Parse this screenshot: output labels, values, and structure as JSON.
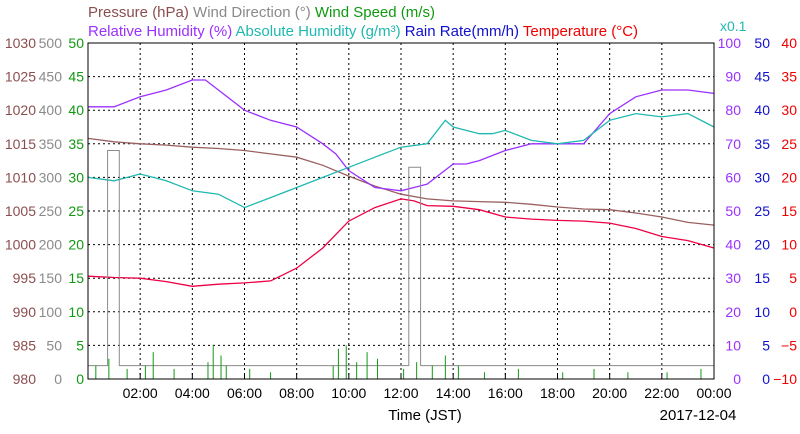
{
  "chart_data": {
    "type": "line",
    "x_axis": {
      "label": "Time (JST)",
      "date": "2017-12-04",
      "range_hours": [
        0,
        24
      ],
      "tick_labels": [
        "02:00",
        "04:00",
        "06:00",
        "08:00",
        "10:00",
        "12:00",
        "14:00",
        "16:00",
        "18:00",
        "20:00",
        "22:00",
        "00:00"
      ],
      "tick_hours": [
        2,
        4,
        6,
        8,
        10,
        12,
        14,
        16,
        18,
        20,
        22,
        24
      ]
    },
    "grid": true,
    "legend": {
      "row1": [
        {
          "id": "pressure",
          "text": "Pressure (hPa)"
        },
        {
          "id": "wind_dir",
          "text": "Wind Direction (°)"
        },
        {
          "id": "wind_speed",
          "text": "Wind Speed (m/s)"
        }
      ],
      "row2": [
        {
          "id": "rh",
          "text": "Relative Humidity (%)"
        },
        {
          "id": "abs_hum",
          "text": "Absolute Humidity (g/m³)"
        },
        {
          "id": "rain",
          "text": "Rain Rate(mm/h)"
        },
        {
          "id": "temp",
          "text": "Temperature (°C)"
        }
      ],
      "row2_suffix": "x0.1"
    },
    "axes": {
      "pressure": {
        "color": "#8b4e4e",
        "range": [
          980,
          1030
        ],
        "ticks": [
          "1030",
          "1025",
          "1020",
          "1015",
          "1010",
          "1005",
          "1000",
          "995",
          "990",
          "985",
          "980"
        ]
      },
      "wind_dir": {
        "color": "#8a8a8a",
        "range": [
          0,
          500
        ],
        "ticks": [
          "500",
          "450",
          "400",
          "350",
          "300",
          "250",
          "200",
          "150",
          "100",
          "50",
          "0"
        ]
      },
      "wind_speed": {
        "color": "#119911",
        "range": [
          0,
          50
        ],
        "ticks": [
          "50",
          "45",
          "40",
          "35",
          "30",
          "25",
          "20",
          "15",
          "10",
          "5",
          "0"
        ]
      },
      "rh": {
        "color": "#9b30ff",
        "range": [
          0,
          100
        ],
        "ticks": [
          "100",
          "90",
          "80",
          "70",
          "60",
          "50",
          "40",
          "30",
          "20",
          "10",
          "0"
        ]
      },
      "rain": {
        "color": "#1010cc",
        "range": [
          0,
          50
        ],
        "ticks": [
          "50",
          "45",
          "40",
          "35",
          "30",
          "25",
          "20",
          "15",
          "10",
          "5",
          "0"
        ]
      },
      "temp": {
        "color": "#ee0000",
        "range": [
          -10,
          40
        ],
        "ticks": [
          "40",
          "35",
          "30",
          "25",
          "20",
          "15",
          "10",
          "5",
          "0",
          "−5",
          "−10"
        ]
      }
    },
    "series": [
      {
        "name": "Pressure (hPa)",
        "axis": "pressure",
        "color": "#9a6060",
        "x": [
          0,
          1,
          2,
          3,
          4,
          5,
          6,
          7,
          8,
          9,
          10,
          11,
          12,
          13,
          14,
          15,
          16,
          17,
          18,
          19,
          20,
          21,
          22,
          23,
          24
        ],
        "y": [
          1015.8,
          1015.3,
          1015.0,
          1014.8,
          1014.5,
          1014.3,
          1014.0,
          1013.5,
          1013.0,
          1011.8,
          1010.2,
          1008.7,
          1007.5,
          1006.8,
          1006.5,
          1006.4,
          1006.3,
          1006.0,
          1005.6,
          1005.3,
          1005.2,
          1004.7,
          1004.1,
          1003.3,
          1002.9
        ]
      },
      {
        "name": "Relative Humidity (%)",
        "axis": "rh",
        "color": "#9b30ff",
        "x": [
          0,
          1,
          2,
          3,
          4,
          4.5,
          5,
          6,
          7,
          8,
          9,
          9.5,
          10,
          11,
          12,
          12.5,
          13,
          14,
          14.5,
          15,
          16,
          17,
          18,
          19,
          20,
          21,
          22,
          23,
          24
        ],
        "y": [
          81,
          81,
          84,
          86,
          89,
          89,
          86,
          80,
          77,
          75,
          70,
          67,
          62,
          57,
          56,
          57,
          58,
          64,
          64,
          65,
          68,
          70,
          70,
          70,
          79,
          84,
          86,
          86,
          85
        ]
      },
      {
        "name": "Absolute Humidity (g/m³)",
        "axis": "abs_hum",
        "color": "#20b8b0",
        "x": [
          0,
          1,
          2,
          3,
          4,
          5,
          6,
          7,
          8,
          9,
          10,
          11,
          12,
          13,
          13.7,
          14,
          15,
          15.5,
          16,
          17,
          18,
          19,
          20,
          21,
          22,
          23,
          24
        ],
        "y": [
          60,
          59,
          61,
          59,
          56,
          55,
          51,
          54,
          57,
          60,
          63,
          66,
          69,
          70,
          77,
          75,
          73,
          73,
          74,
          71,
          70,
          71,
          77,
          79,
          78,
          79,
          75
        ]
      },
      {
        "name": "Temperature (°C)",
        "axis": "temp",
        "color": "#ee0044",
        "x": [
          0,
          1,
          2,
          3,
          4,
          5,
          6,
          7,
          8,
          9,
          10,
          11,
          12,
          12.5,
          13,
          14,
          15,
          16,
          17,
          18,
          19,
          20,
          21,
          22,
          23,
          24
        ],
        "y": [
          5.3,
          5.1,
          5.0,
          4.5,
          3.8,
          4.1,
          4.3,
          4.6,
          6.5,
          9.5,
          13.5,
          15.5,
          16.8,
          16.5,
          15.8,
          15.7,
          15.2,
          14.1,
          13.8,
          13.6,
          13.5,
          13.2,
          12.4,
          11.2,
          10.6,
          9.5
        ]
      },
      {
        "name": "Wind Direction (°)",
        "axis": "wind_dir",
        "color": "#8a8a8a",
        "style": "step",
        "x": [
          0,
          0.75,
          0.75,
          1.2,
          1.2,
          12.3,
          12.3,
          12.75,
          12.75,
          24
        ],
        "y": [
          20,
          20,
          340,
          340,
          20,
          20,
          315,
          315,
          20,
          20
        ]
      }
    ],
    "wind_speed_gust_hours": [
      0.3,
      0.8,
      1.5,
      2.2,
      2.5,
      3.3,
      4.6,
      4.8,
      5.1,
      5.3,
      6.2,
      7.0,
      9.4,
      9.6,
      9.9,
      10.3,
      10.7,
      11.1,
      12.1,
      12.6,
      13.2,
      13.7,
      14.2,
      15.2,
      16.5,
      18.2,
      19.4,
      20.7,
      22.2,
      23.5
    ],
    "wind_speed_gust_values": [
      2,
      3,
      1.5,
      2,
      4,
      1.5,
      2.5,
      5,
      3.5,
      2,
      1.5,
      1,
      2,
      4.5,
      5,
      2.5,
      4,
      3,
      1.5,
      2.5,
      2,
      3.5,
      2,
      1,
      1.5,
      1,
      1.5,
      1,
      1,
      1.5
    ]
  }
}
